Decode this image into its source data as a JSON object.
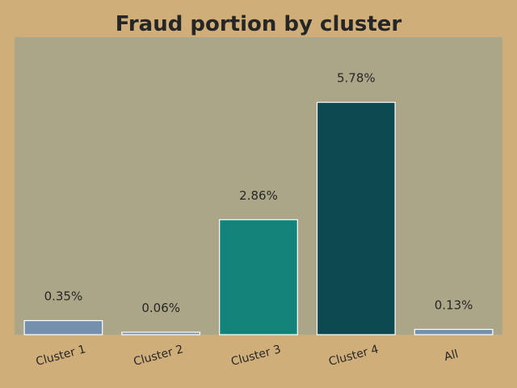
{
  "chart_data": {
    "type": "bar",
    "title": "Fraud portion by cluster",
    "xlabel": "",
    "ylabel": "",
    "categories": [
      "Cluster 1",
      "Cluster 2",
      "Cluster 3",
      "Cluster 4",
      "All"
    ],
    "values": [
      0.35,
      0.06,
      2.86,
      5.78,
      0.13
    ],
    "labels": [
      "0.35%",
      "0.06%",
      "2.86%",
      "5.78%",
      "0.13%"
    ],
    "colors": [
      "#7590ad",
      "#7590ad",
      "#138278",
      "#0d4951",
      "#7590ad"
    ],
    "ylim": [
      0,
      7.4
    ],
    "grid": false,
    "legend": "none",
    "plot_background": "#aca688",
    "figure_background": "#cfae79"
  }
}
